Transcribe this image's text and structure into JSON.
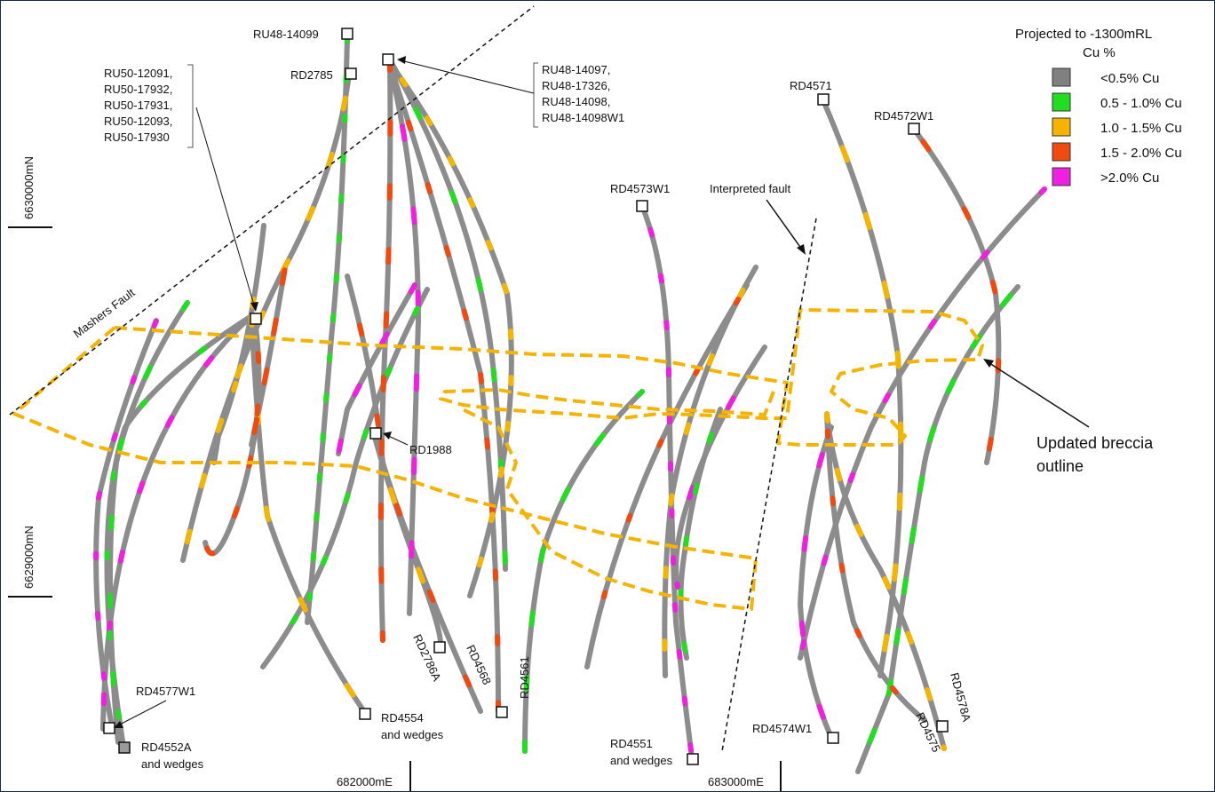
{
  "legend": {
    "title": "Projected to -1300mRL",
    "subtitle": "Cu %",
    "items": [
      {
        "label": "<0.5% Cu",
        "color": "#808080"
      },
      {
        "label": "0.5 - 1.0% Cu",
        "color": "#22dd22"
      },
      {
        "label": "1.0 - 1.5% Cu",
        "color": "#f5b400"
      },
      {
        "label": "1.5 - 2.0% Cu",
        "color": "#f04a10"
      },
      {
        "label": ">2.0% Cu",
        "color": "#f020e0"
      }
    ]
  },
  "grid": {
    "northings": [
      "6630000mN",
      "6629000mN"
    ],
    "eastings": [
      "682000mE",
      "683000mE"
    ]
  },
  "faults": {
    "mashers": "Mashers Fault",
    "interpreted": "Interpreted fault"
  },
  "breccia_label": [
    "Updated breccia",
    "outline"
  ],
  "collar_labels": {
    "ru48_14099": "RU48-14099",
    "rd2785": "RD2785",
    "ru48_group": [
      "RU48-14097,",
      "RU48-17326,",
      "RU48-14098,",
      "RU48-14098W1"
    ],
    "ru50_group": [
      "RU50-12091,",
      "RU50-17932,",
      "RU50-17931,",
      "RU50-12093,",
      "RU50-17930"
    ],
    "rd4571": "RD4571",
    "rd4572w1": "RD4572W1",
    "rd4573w1": "RD4573W1",
    "rd1988": "RD1988",
    "rd4577w1": "RD4577W1",
    "rd4552a": [
      "RD4552A",
      "and wedges"
    ],
    "rd4554": [
      "RD4554",
      "and wedges"
    ],
    "rd2786a": "RD2786A",
    "rd4568": "RD4568",
    "rd4561": "RD4561",
    "rd4551": [
      "RD4551",
      "and wedges"
    ],
    "rd4574w1": "RD4574W1",
    "rd4578a": "RD4578A",
    "rd4575": "RD4575"
  },
  "colors": {
    "trace": "#8c8c8c",
    "breccia": "#f5b400",
    "collar_fill": "#9a9a9a"
  }
}
